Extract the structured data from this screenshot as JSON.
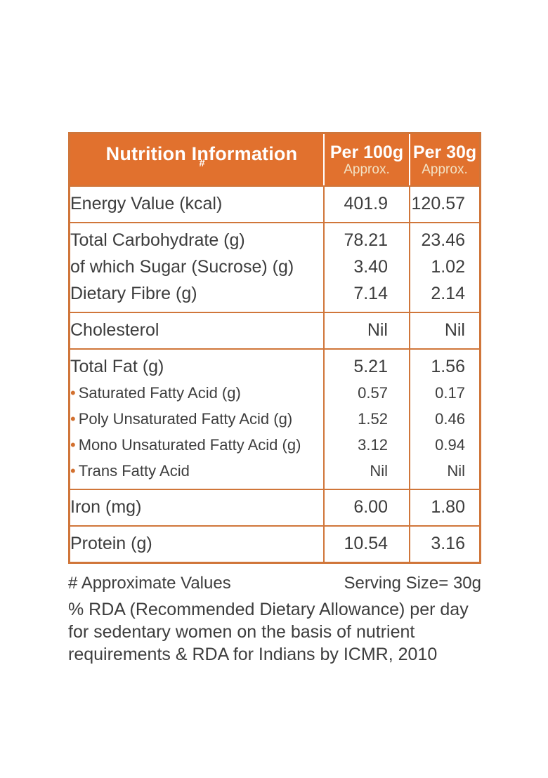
{
  "colors": {
    "accent": "#E1712E",
    "border": "#D0763A",
    "text": "#3D3D3D",
    "header_text": "#FFFFFF",
    "approx_text": "#F2E2C4",
    "bullet": "#D2702F"
  },
  "table": {
    "header": {
      "title": "Nutrition Information",
      "title_superscript": "#",
      "per100g": {
        "line1": "Per 100g",
        "line2": "Approx."
      },
      "per30g": {
        "line1": "Per 30g",
        "line2": "Approx."
      }
    },
    "groups": [
      {
        "rows": [
          {
            "label": "Energy Value (kcal)",
            "per100g": "401.9",
            "per30g": "120.57",
            "style": "main",
            "bullet": false
          }
        ]
      },
      {
        "rows": [
          {
            "label": "Total Carbohydrate (g)",
            "per100g": "78.21",
            "per30g": "23.46",
            "style": "main",
            "bullet": false
          },
          {
            "label": "of which Sugar (Sucrose) (g)",
            "per100g": "3.40",
            "per30g": "1.02",
            "style": "main",
            "bullet": false
          },
          {
            "label": "Dietary Fibre (g)",
            "per100g": "7.14",
            "per30g": "2.14",
            "style": "main",
            "bullet": false
          }
        ]
      },
      {
        "rows": [
          {
            "label": "Cholesterol",
            "per100g": "Nil",
            "per30g": "Nil",
            "style": "main",
            "bullet": false
          }
        ]
      },
      {
        "rows": [
          {
            "label": "Total Fat (g)",
            "per100g": "5.21",
            "per30g": "1.56",
            "style": "main",
            "bullet": false
          },
          {
            "label": "Saturated Fatty Acid (g)",
            "per100g": "0.57",
            "per30g": "0.17",
            "style": "sub",
            "bullet": true
          },
          {
            "label": "Poly Unsaturated Fatty Acid (g)",
            "per100g": "1.52",
            "per30g": "0.46",
            "style": "sub",
            "bullet": true
          },
          {
            "label": "Mono Unsaturated Fatty Acid (g)",
            "per100g": "3.12",
            "per30g": "0.94",
            "style": "sub",
            "bullet": true
          },
          {
            "label": "Trans Fatty Acid",
            "per100g": "Nil",
            "per30g": "Nil",
            "style": "sub",
            "bullet": true
          }
        ]
      },
      {
        "rows": [
          {
            "label": "Iron (mg)",
            "per100g": "6.00",
            "per30g": "1.80",
            "style": "main",
            "bullet": false
          }
        ]
      },
      {
        "rows": [
          {
            "label": "Protein (g)",
            "per100g": "10.54",
            "per30g": "3.16",
            "style": "main",
            "bullet": false
          }
        ]
      }
    ]
  },
  "footnotes": {
    "approximate_values": "# Approximate Values",
    "serving_size": "Serving Size= 30g",
    "rda_lines": [
      "% RDA (Recommended Dietary Allowance) per day",
      "for sedentary women on the basis of nutrient",
      "requirements & RDA for Indians by ICMR, 2010"
    ]
  }
}
